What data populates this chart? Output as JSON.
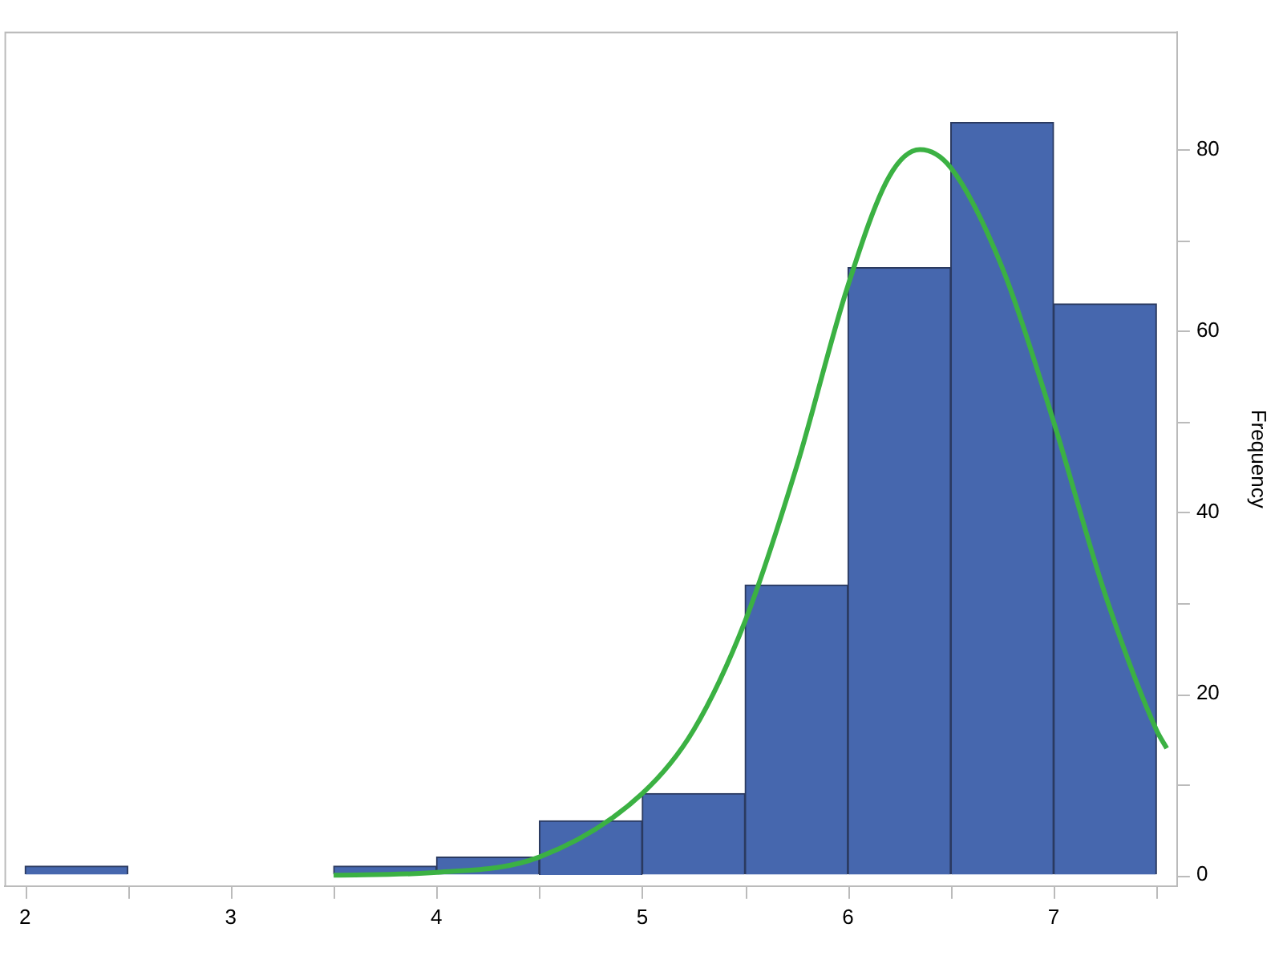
{
  "chart_data": {
    "type": "histogram",
    "ylabel": "Frequency",
    "bins": [
      2,
      2.5,
      3,
      3.5,
      4,
      4.5,
      5,
      5.5,
      6,
      6.5,
      7,
      7.5
    ],
    "values": [
      1,
      0,
      0,
      1,
      2,
      6,
      9,
      32,
      67,
      83,
      63
    ],
    "color": "#4667ae",
    "series": [
      {
        "type": "line",
        "color": "#3bb143",
        "x": [
          3.5,
          4,
          4.5,
          5,
          5.25,
          5.5,
          5.75,
          6,
          6.2,
          6.35,
          6.5,
          6.75,
          7,
          7.25,
          7.5,
          7.55
        ],
        "values": [
          0,
          0.3,
          2,
          9,
          16,
          28,
          45,
          65,
          77,
          80,
          78,
          67,
          50,
          31,
          16,
          14
        ]
      }
    ],
    "xlim": [
      1.9,
      7.6
    ],
    "ylim": [
      -1.2,
      93
    ],
    "xticks": [
      2,
      {
        "value": 2.5,
        "label": null
      },
      3,
      {
        "value": 3.5,
        "label": null
      },
      4,
      {
        "value": 4.5,
        "label": null
      },
      5,
      {
        "value": 5.5,
        "label": null
      },
      6,
      {
        "value": 6.5,
        "label": null
      },
      7,
      {
        "value": 7.5,
        "label": null
      }
    ],
    "yticks": [
      0,
      {
        "value": 10,
        "label": null
      },
      20,
      {
        "value": 30,
        "label": null
      },
      40,
      {
        "value": 50,
        "label": null
      },
      60,
      {
        "value": 70,
        "label": null
      },
      80
    ],
    "grid": false,
    "legend": false,
    "marker": "none",
    "line_style": "solid"
  }
}
